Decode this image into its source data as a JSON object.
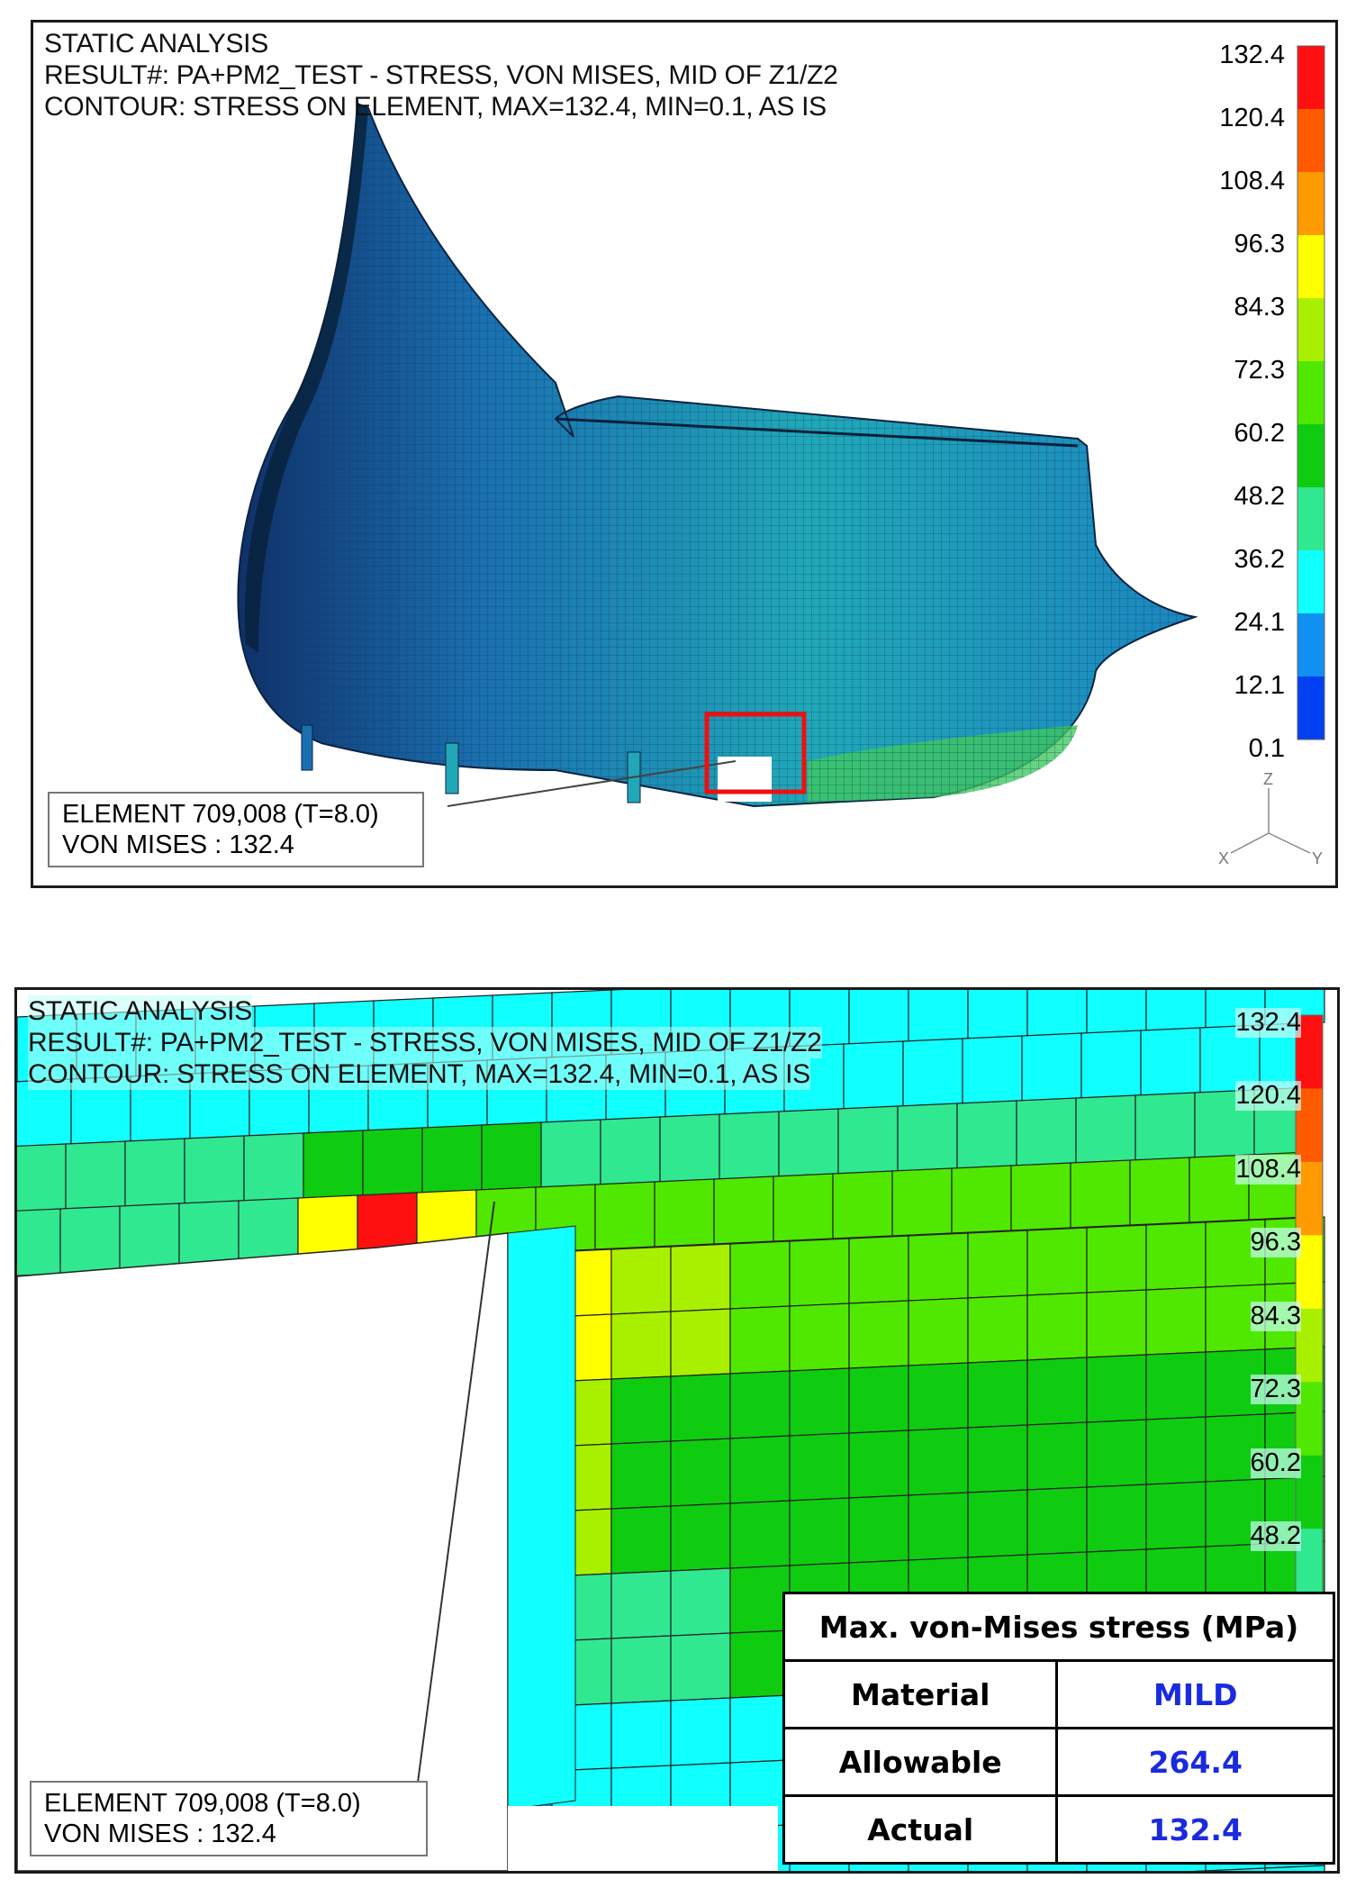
{
  "header": {
    "line1": "STATIC ANALYSIS",
    "line2": "RESULT#: PA+PM2_TEST - STRESS, VON MISES, MID OF Z1/Z2",
    "line3": "CONTOUR: STRESS ON ELEMENT, MAX=132.4, MIN=0.1, AS IS"
  },
  "legend": {
    "labels": [
      "132.4",
      "120.4",
      "108.4",
      "96.3",
      "84.3",
      "72.3",
      "60.2",
      "48.2",
      "36.2",
      "24.1",
      "12.1",
      "0.1"
    ],
    "colors": [
      "#ff1010",
      "#ff5a00",
      "#ff9a00",
      "#ffff00",
      "#a8f000",
      "#50e800",
      "#10cc10",
      "#30e890",
      "#10ffff",
      "#1090f0",
      "#0040f0"
    ]
  },
  "element_info": {
    "line1": "ELEMENT 709,008 (T=8.0)",
    "line2": "VON MISES : 132.4"
  },
  "axes": {
    "z": "Z",
    "x": "X",
    "y": "Y"
  },
  "results_table": {
    "title": "Max. von-Mises stress (MPa)",
    "rows": [
      {
        "label": "Material",
        "value": "MILD"
      },
      {
        "label": "Allowable",
        "value": "264.4"
      },
      {
        "label": "Actual",
        "value": "132.4"
      }
    ]
  }
}
